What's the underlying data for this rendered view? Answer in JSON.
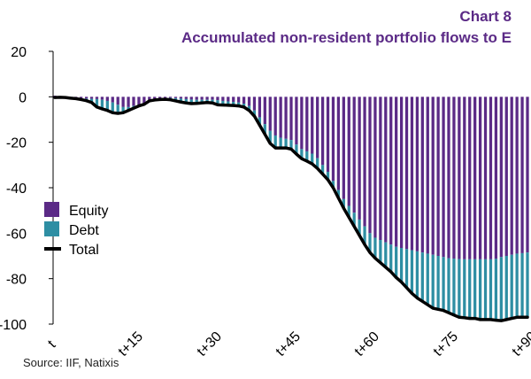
{
  "header": {
    "title_line_1": "Chart 8",
    "title_line_2": "Accumulated non-resident portfolio flows to E"
  },
  "source": "Source: IIF, Natixis",
  "colors": {
    "equity": "#5b2a86",
    "debt": "#2e8ea3",
    "total": "#000000",
    "title": "#5b2a86"
  },
  "chart_data": {
    "type": "bar",
    "stacked": true,
    "title": "Accumulated non-resident portfolio flows to E",
    "ylim": [
      -100,
      20
    ],
    "yticks": [
      20,
      0,
      -20,
      -40,
      -60,
      -80,
      -100
    ],
    "xlim": [
      0,
      90
    ],
    "xticks": [
      {
        "x": 0,
        "label": "t"
      },
      {
        "x": 15,
        "label": "t+15"
      },
      {
        "x": 30,
        "label": "t+30"
      },
      {
        "x": 45,
        "label": "t+45"
      },
      {
        "x": 60,
        "label": "t+60"
      },
      {
        "x": 75,
        "label": "t+75"
      },
      {
        "x": 90,
        "label": "t+90"
      }
    ],
    "legend": {
      "position": "left-middle",
      "entries": [
        {
          "key": "equity",
          "label": "Equity",
          "type": "box"
        },
        {
          "key": "debt",
          "label": "Debt",
          "type": "box"
        },
        {
          "key": "total",
          "label": "Total",
          "type": "line"
        }
      ]
    },
    "x": [
      0,
      1,
      2,
      3,
      4,
      5,
      6,
      7,
      8,
      9,
      10,
      11,
      12,
      13,
      14,
      15,
      16,
      17,
      18,
      19,
      20,
      21,
      22,
      23,
      24,
      25,
      26,
      27,
      28,
      29,
      30,
      31,
      32,
      33,
      34,
      35,
      36,
      37,
      38,
      39,
      40,
      41,
      42,
      43,
      44,
      45,
      46,
      47,
      48,
      49,
      50,
      51,
      52,
      53,
      54,
      55,
      56,
      57,
      58,
      59,
      60,
      61,
      62,
      63,
      64,
      65,
      66,
      67,
      68,
      69,
      70,
      71,
      72,
      73,
      74,
      75,
      76,
      77,
      78,
      79,
      80,
      81,
      82,
      83,
      84,
      85,
      86,
      87,
      88,
      89,
      90
    ],
    "series": [
      {
        "name": "Equity",
        "values": [
          0.5,
          0.3,
          -0.5,
          -0.6,
          -0.7,
          -0.8,
          -0.8,
          -0.9,
          -1.0,
          -1.3,
          -1.8,
          -2.5,
          -3.5,
          -4.5,
          -4.5,
          -4.0,
          -3.5,
          -3.0,
          -1.5,
          -1.0,
          -0.8,
          -0.6,
          -0.5,
          -0.6,
          -0.8,
          -1.0,
          -1.2,
          -1.3,
          -1.3,
          -1.3,
          -1.3,
          -1.5,
          -1.8,
          -2.0,
          -2.2,
          -2.5,
          -3.0,
          -4.0,
          -6.0,
          -9.0,
          -12.0,
          -15.0,
          -17.0,
          -18.0,
          -18.5,
          -19.0,
          -21.0,
          -23.0,
          -24.0,
          -25.0,
          -27.0,
          -30.0,
          -33.0,
          -37.0,
          -41.0,
          -45.0,
          -48.0,
          -51.0,
          -54.0,
          -57.0,
          -60.0,
          -62.0,
          -63.0,
          -64.0,
          -65.0,
          -66.0,
          -66.5,
          -67.0,
          -67.5,
          -68.0,
          -68.5,
          -69.0,
          -69.5,
          -70.0,
          -70.5,
          -71.0,
          -71.2,
          -71.4,
          -71.5,
          -71.5,
          -71.5,
          -71.5,
          -71.5,
          -71.5,
          -71.3,
          -70.5,
          -70.0,
          -69.5,
          -69.0,
          -68.8,
          -68.5
        ]
      },
      {
        "name": "Debt",
        "values": [
          -0.8,
          -0.5,
          0.2,
          0.0,
          -0.1,
          -0.4,
          -0.9,
          -1.6,
          -3.5,
          -4.0,
          -4.2,
          -4.5,
          -3.8,
          -2.5,
          -1.5,
          -1.0,
          -0.5,
          -0.3,
          -0.3,
          -0.4,
          -0.4,
          -0.5,
          -0.8,
          -1.2,
          -1.5,
          -1.7,
          -1.8,
          -1.6,
          -1.4,
          -1.2,
          -1.4,
          -2.0,
          -1.8,
          -1.7,
          -1.6,
          -1.5,
          -1.5,
          -2.0,
          -2.5,
          -3.5,
          -4.5,
          -5.5,
          -5.5,
          -4.5,
          -4.0,
          -4.0,
          -4.2,
          -4.2,
          -4.3,
          -4.5,
          -4.5,
          -4.0,
          -3.5,
          -3.0,
          -3.5,
          -4.0,
          -5.0,
          -6.0,
          -7.0,
          -8.0,
          -8.5,
          -9.0,
          -10.0,
          -11.0,
          -12.0,
          -13.5,
          -15.0,
          -17.0,
          -19.0,
          -20.5,
          -21.5,
          -22.5,
          -23.5,
          -23.5,
          -23.5,
          -24.0,
          -24.8,
          -25.6,
          -25.7,
          -26.0,
          -26.0,
          -26.5,
          -26.5,
          -26.5,
          -27.0,
          -28.0,
          -28.0,
          -28.0,
          -28.0,
          -28.2,
          -28.5
        ]
      }
    ],
    "total_name": "Total",
    "total": [
      -0.3,
      -0.2,
      -0.3,
      -0.6,
      -0.8,
      -1.2,
      -1.7,
      -2.5,
      -4.5,
      -5.3,
      -6.0,
      -7.0,
      -7.3,
      -7.0,
      -6.0,
      -5.0,
      -4.0,
      -3.3,
      -1.8,
      -1.4,
      -1.2,
      -1.1,
      -1.3,
      -1.8,
      -2.3,
      -2.7,
      -3.0,
      -2.9,
      -2.7,
      -2.5,
      -2.7,
      -3.5,
      -3.6,
      -3.7,
      -3.8,
      -4.0,
      -4.5,
      -6.0,
      -8.5,
      -12.5,
      -16.5,
      -20.5,
      -22.5,
      -22.5,
      -22.5,
      -23.0,
      -25.2,
      -27.2,
      -28.3,
      -29.5,
      -31.5,
      -34.0,
      -36.5,
      -40.0,
      -44.5,
      -49.0,
      -53.0,
      -57.0,
      -61.0,
      -65.0,
      -68.5,
      -71.0,
      -73.0,
      -75.0,
      -77.0,
      -79.5,
      -81.5,
      -84.0,
      -86.5,
      -88.5,
      -90.0,
      -91.5,
      -93.0,
      -93.5,
      -94.0,
      -95.0,
      -96.0,
      -97.0,
      -97.2,
      -97.5,
      -97.5,
      -98.0,
      -98.0,
      -98.0,
      -98.3,
      -98.5,
      -98.0,
      -97.5,
      -97.0,
      -97.0,
      -97.0
    ]
  }
}
